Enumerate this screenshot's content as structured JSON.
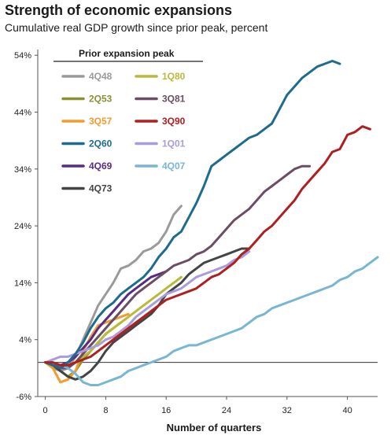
{
  "chart_data": {
    "type": "line",
    "title": "Strength of economic expansions",
    "subtitle": "Cumulative real GDP growth since prior peak, percent",
    "xlabel": "Number of quarters",
    "ylabel": "",
    "xlim": [
      -1,
      44
    ],
    "ylim": [
      -6,
      55
    ],
    "xticks": [
      0,
      8,
      16,
      24,
      32,
      40
    ],
    "yticks": [
      -6,
      4,
      14,
      24,
      34,
      44,
      54
    ],
    "ytick_labels": [
      "-6%",
      "4%",
      "14%",
      "24%",
      "34%",
      "44%",
      "54%"
    ],
    "grid": false,
    "legend": {
      "title": "Prior expansion peak",
      "position": "top-left"
    },
    "series": [
      {
        "name": "4Q48",
        "color": "#9a9a9a",
        "x": [
          0,
          1,
          2,
          3,
          4,
          5,
          6,
          7,
          8,
          9,
          10,
          11,
          12,
          13,
          14,
          15,
          16,
          17,
          18
        ],
        "y": [
          0,
          -1,
          -1.5,
          -1,
          1,
          4,
          7,
          10,
          12,
          14,
          16.5,
          17,
          18,
          19.5,
          20,
          21,
          23,
          26,
          27.5
        ]
      },
      {
        "name": "2Q53",
        "color": "#8c9234",
        "x": [
          0,
          1,
          2,
          3,
          4,
          5,
          6,
          7,
          8,
          9,
          10
        ],
        "y": [
          0,
          -0.5,
          -1.5,
          -2.5,
          -1.5,
          0.5,
          2,
          3.5,
          5,
          6,
          7
        ]
      },
      {
        "name": "3Q57",
        "color": "#f39c2e",
        "x": [
          0,
          1,
          2,
          3,
          4,
          5,
          6,
          7,
          8,
          9,
          10,
          11
        ],
        "y": [
          0,
          -1,
          -3.5,
          -3,
          -1.5,
          2,
          4.5,
          6.5,
          7,
          7.5,
          8,
          8.5
        ]
      },
      {
        "name": "2Q60",
        "color": "#1d6c8c",
        "x": [
          0,
          1,
          2,
          3,
          4,
          5,
          6,
          7,
          8,
          9,
          10,
          11,
          12,
          13,
          14,
          15,
          16,
          17,
          18,
          19,
          20,
          21,
          22,
          23,
          24,
          25,
          26,
          27,
          28,
          29,
          30,
          31,
          32,
          33,
          34,
          35,
          36,
          37,
          38,
          39
        ],
        "y": [
          0,
          -0.5,
          -1,
          0,
          1.5,
          3.5,
          6,
          8,
          9.5,
          10.5,
          12,
          13,
          14,
          15,
          16.5,
          18.5,
          20,
          22,
          23,
          25.5,
          28,
          31,
          34.5,
          35.5,
          36.5,
          37.5,
          38.5,
          39.5,
          40,
          41,
          42,
          44.5,
          47,
          48.5,
          50,
          51,
          52,
          52.5,
          53,
          52.5
        ]
      },
      {
        "name": "4Q69",
        "color": "#5b2a86",
        "x": [
          0,
          1,
          2,
          3,
          4,
          5,
          6,
          7,
          8,
          9,
          10,
          11,
          12,
          13,
          14,
          15,
          16
        ],
        "y": [
          0,
          -0.5,
          -0.5,
          0,
          1,
          2.5,
          4,
          6,
          7.5,
          9,
          10.5,
          12,
          13,
          14,
          15,
          15.5,
          16
        ]
      },
      {
        "name": "4Q73",
        "color": "#444444",
        "x": [
          0,
          1,
          2,
          3,
          4,
          5,
          6,
          7,
          8,
          9,
          10,
          11,
          12,
          13,
          14,
          15,
          16,
          17,
          18,
          19,
          20,
          21,
          22,
          23,
          24,
          25,
          26,
          27
        ],
        "y": [
          0,
          -0.5,
          -1.5,
          -2.5,
          -3,
          -2.5,
          -1.5,
          0,
          2,
          3.5,
          4.5,
          5.5,
          6.5,
          7.5,
          8.5,
          10,
          12,
          13,
          14,
          15.5,
          16.5,
          17.5,
          18,
          18.5,
          19,
          19.5,
          20,
          20
        ]
      },
      {
        "name": "1Q80",
        "color": "#b9ba3a",
        "x": [
          0,
          1,
          2,
          3,
          4,
          5,
          6,
          7,
          8,
          9,
          10,
          11,
          12,
          13,
          14,
          15,
          16,
          17,
          18
        ],
        "y": [
          0,
          -0.5,
          -1,
          -0.5,
          0,
          1,
          2,
          3.5,
          5,
          6,
          7,
          8,
          9,
          10,
          11,
          12,
          13,
          14,
          15
        ]
      },
      {
        "name": "3Q81",
        "color": "#6b4e63",
        "x": [
          0,
          1,
          2,
          3,
          4,
          5,
          6,
          7,
          8,
          9,
          10,
          11,
          12,
          13,
          14,
          15,
          16,
          17,
          18,
          19,
          20,
          21,
          22,
          23,
          24,
          25,
          26,
          27,
          28,
          29,
          30,
          31,
          32,
          33,
          34,
          35
        ],
        "y": [
          0,
          -0.5,
          -1,
          -1,
          0,
          1.5,
          3,
          4.5,
          6,
          7.5,
          9,
          10.5,
          12,
          13,
          14,
          15,
          16,
          17,
          17.5,
          18,
          19,
          19.5,
          20.5,
          22,
          23.5,
          25,
          26,
          27,
          28.5,
          30,
          31,
          32,
          33,
          34,
          34.5,
          34.5
        ]
      },
      {
        "name": "3Q90",
        "color": "#b01f1f",
        "x": [
          0,
          1,
          2,
          3,
          4,
          5,
          6,
          7,
          8,
          9,
          10,
          11,
          12,
          13,
          14,
          15,
          16,
          17,
          18,
          19,
          20,
          21,
          22,
          23,
          24,
          25,
          26,
          27,
          28,
          29,
          30,
          31,
          32,
          33,
          34,
          35,
          36,
          37,
          38,
          39,
          40,
          41,
          42,
          43
        ],
        "y": [
          0,
          0,
          -0.5,
          -0.5,
          0,
          0.5,
          1,
          2,
          3,
          4,
          5,
          6,
          7,
          8,
          9,
          10,
          11,
          11.5,
          12,
          12.5,
          13,
          14,
          15,
          15.5,
          16.5,
          17.5,
          19,
          20,
          21.5,
          23,
          24,
          25.5,
          27,
          28.5,
          30.5,
          32,
          33.5,
          35,
          37,
          37.5,
          40,
          40.5,
          41.5,
          41
        ]
      },
      {
        "name": "1Q01",
        "color": "#a89bde",
        "x": [
          0,
          1,
          2,
          3,
          4,
          5,
          6,
          7,
          8,
          9,
          10,
          11,
          12,
          13,
          14,
          15,
          16,
          17,
          18,
          19,
          20,
          21,
          22,
          23,
          24,
          25,
          26,
          27
        ],
        "y": [
          0,
          0.5,
          1,
          1,
          1.5,
          2,
          2.5,
          3,
          4,
          4.5,
          5.5,
          6.5,
          8,
          9,
          10,
          11,
          12,
          12.5,
          13,
          14,
          15,
          15.5,
          16,
          16.5,
          17,
          18,
          18.5,
          19.5
        ]
      },
      {
        "name": "4Q07",
        "color": "#78b6d3",
        "x": [
          0,
          1,
          2,
          3,
          4,
          5,
          6,
          7,
          8,
          9,
          10,
          11,
          12,
          13,
          14,
          15,
          16,
          17,
          18,
          19,
          20,
          21,
          22,
          23,
          24,
          25,
          26,
          27,
          28,
          29,
          30,
          31,
          32,
          33,
          34,
          35,
          36,
          37,
          38,
          39,
          40,
          41,
          42,
          43,
          44
        ],
        "y": [
          0,
          0,
          -0.5,
          -1,
          -2,
          -3.5,
          -4,
          -4,
          -3.5,
          -3,
          -2.5,
          -1.5,
          -1,
          -0.5,
          0,
          0.5,
          1,
          2,
          2.5,
          3,
          3,
          3.5,
          4,
          4.5,
          5,
          5.5,
          6,
          7,
          8,
          8.5,
          9.5,
          10,
          10.5,
          11,
          11.5,
          12,
          12.5,
          13,
          13.5,
          14.5,
          15,
          16,
          16.5,
          17.5,
          18.5
        ]
      }
    ]
  }
}
